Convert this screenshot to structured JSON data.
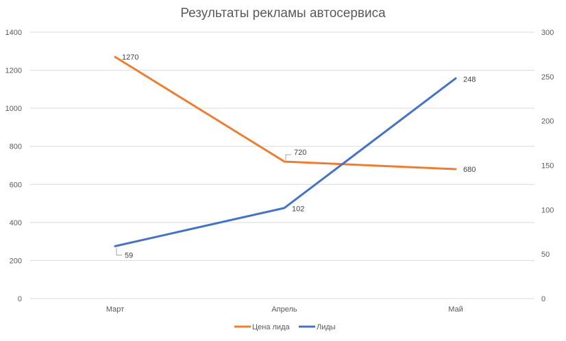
{
  "chart_data": {
    "type": "line",
    "title": "Результаты рекламы автосервиса",
    "categories": [
      "Март",
      "Апрель",
      "Май"
    ],
    "y_left": {
      "min": 0,
      "max": 1400,
      "step": 200,
      "ticks": [
        "0",
        "200",
        "400",
        "600",
        "800",
        "1000",
        "1200",
        "1400"
      ]
    },
    "y_right": {
      "min": 0,
      "max": 300,
      "step": 50,
      "ticks": [
        "0",
        "50",
        "100",
        "150",
        "200",
        "250",
        "300"
      ]
    },
    "grid": true,
    "legend_position": "bottom",
    "series": [
      {
        "name": "Цена лида",
        "axis": "left",
        "color": "#ed7d31",
        "values": [
          1270,
          720,
          680
        ],
        "labels": [
          "1270",
          "720",
          "680"
        ]
      },
      {
        "name": "Лиды",
        "axis": "right",
        "color": "#4472c4",
        "values": [
          59,
          102,
          248
        ],
        "labels": [
          "59",
          "102",
          "248"
        ]
      }
    ]
  }
}
